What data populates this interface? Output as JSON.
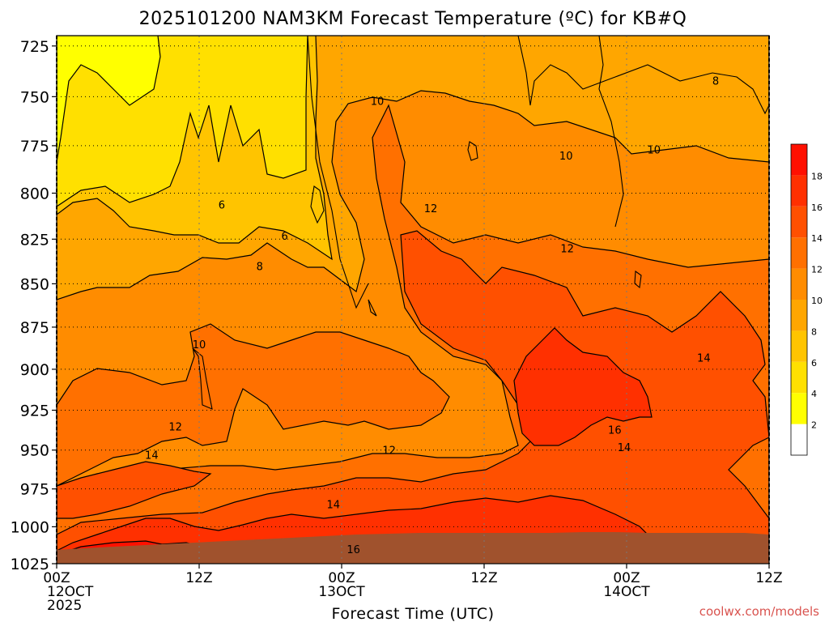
{
  "chart_data": {
    "type": "heatmap",
    "title": "2025101200 NAM3KM Forecast Temperature (ºC) for KB#Q",
    "xlabel": "Forecast Time (UTC)",
    "ylabel": "",
    "x_ticks": [
      {
        "hour": 0,
        "lines": [
          "00Z",
          "12OCT",
          "2025"
        ]
      },
      {
        "hour": 12,
        "lines": [
          "12Z"
        ]
      },
      {
        "hour": 24,
        "lines": [
          "00Z",
          "13OCT"
        ]
      },
      {
        "hour": 36,
        "lines": [
          "12Z"
        ]
      },
      {
        "hour": 48,
        "lines": [
          "00Z",
          "14OCT"
        ]
      },
      {
        "hour": 60,
        "lines": [
          "12Z"
        ]
      }
    ],
    "xlim": [
      0,
      60
    ],
    "y_ticks": [
      725,
      750,
      775,
      800,
      825,
      850,
      875,
      900,
      925,
      950,
      975,
      1000,
      1025
    ],
    "ylim": [
      1025,
      720
    ],
    "y_scale": "log-pressure",
    "grid": true,
    "colorbar": {
      "position": "right",
      "levels": [
        2,
        4,
        6,
        8,
        10,
        12,
        14,
        16,
        18
      ],
      "colors": [
        "#ffffff",
        "#ffff00",
        "#ffe000",
        "#ffc400",
        "#ffa600",
        "#ff8c00",
        "#ff7000",
        "#ff5000",
        "#ff3000",
        "#ff1000"
      ]
    },
    "ground_color": "#a0522d",
    "contour_labels": [
      {
        "value": "6",
        "hour": 13.9,
        "p": 806
      },
      {
        "value": "6",
        "hour": 19.2,
        "p": 823
      },
      {
        "value": "8",
        "hour": 17.1,
        "p": 840
      },
      {
        "value": "10",
        "hour": 12.0,
        "p": 885
      },
      {
        "value": "12",
        "hour": 10.0,
        "p": 935
      },
      {
        "value": "14",
        "hour": 8.0,
        "p": 953
      },
      {
        "value": "10",
        "hour": 27.0,
        "p": 752
      },
      {
        "value": "12",
        "hour": 31.5,
        "p": 808
      },
      {
        "value": "12",
        "hour": 28.0,
        "p": 950
      },
      {
        "value": "14",
        "hour": 23.3,
        "p": 985
      },
      {
        "value": "16",
        "hour": 25.0,
        "p": 1015
      },
      {
        "value": "10",
        "hour": 42.9,
        "p": 780
      },
      {
        "value": "12",
        "hour": 43.0,
        "p": 830
      },
      {
        "value": "8",
        "hour": 55.5,
        "p": 742
      },
      {
        "value": "10",
        "hour": 50.3,
        "p": 777
      },
      {
        "value": "14",
        "hour": 54.5,
        "p": 893
      },
      {
        "value": "16",
        "hour": 47.0,
        "p": 937
      },
      {
        "value": "14",
        "hour": 47.8,
        "p": 948
      }
    ]
  },
  "footer": {
    "credit": "coolwx.com/models"
  }
}
